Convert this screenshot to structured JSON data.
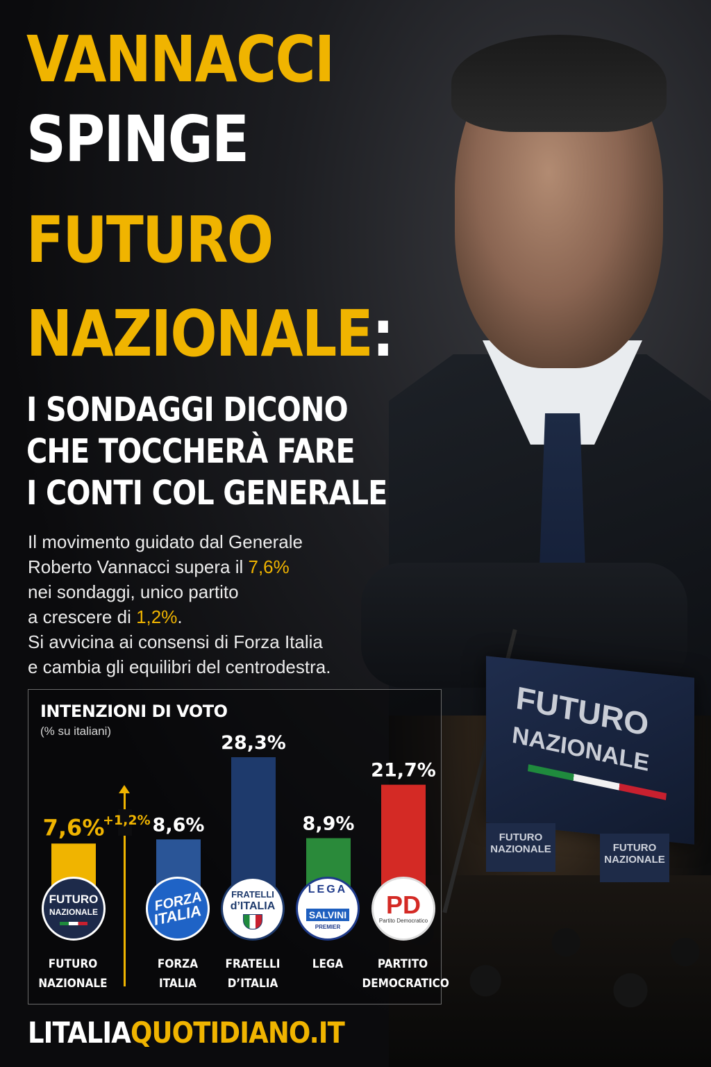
{
  "headline": {
    "line1": "VANNACCI",
    "line2": "SPINGE",
    "line3": "FUTURO",
    "line4": "NAZIONALE",
    "colon": ":",
    "subtitle_lines": [
      "I SONDAGGI DICONO",
      "CHE TOCCHERÀ FARE",
      "I CONTI COL GENERALE"
    ]
  },
  "body": {
    "line1": "Il movimento guidato dal Generale",
    "line2_a": "Roberto Vannacci supera il ",
    "line2_hl": "7,6%",
    "line3": "nei sondaggi, unico partito",
    "line4_a": "a crescere di ",
    "line4_hl": "1,2%",
    "line4_b": ".",
    "line5": "Si avvicina ai consensi di Forza Italia",
    "line6": "e cambia gli equilibri del centrodestra."
  },
  "flags": {
    "big_line1": "FUTURO",
    "big_line2": "NAZIONALE",
    "small_text": "FUTURO NAZIONALE"
  },
  "chart_data": {
    "type": "bar",
    "title": "INTENZIONI DI VOTO",
    "subtitle": "(% su italiani)",
    "categories": [
      "FUTURO NAZIONALE",
      "FORZA ITALIA",
      "FRATELLI D’ITALIA",
      "LEGA",
      "PARTITO DEMOCRATICO"
    ],
    "values": [
      7.6,
      8.6,
      28.3,
      8.9,
      21.7
    ],
    "value_labels": [
      "7,6%",
      "8,6%",
      "28,3%",
      "8,9%",
      "21,7%"
    ],
    "label_lines": [
      [
        "FUTURO",
        "NAZIONALE"
      ],
      [
        "FORZA",
        "ITALIA"
      ],
      [
        "FRATELLI",
        "D’ITALIA"
      ],
      [
        "LEGA",
        ""
      ],
      [
        "PARTITO",
        "DEMOCRATICO"
      ]
    ],
    "colors": [
      "#f0b400",
      "#2a5597",
      "#1e3a6c",
      "#2a8a3a",
      "#d42a25"
    ],
    "growth_label": "+1,2%",
    "grid": false
  },
  "logos": {
    "fn": [
      "FUTURO",
      "NAZIONALE"
    ],
    "fi": [
      "FORZA",
      "ITALIA"
    ],
    "fdi": [
      "FRATELLI",
      "d’ITALIA"
    ],
    "lega": [
      "LEGA",
      "SALVINI",
      "PREMIER"
    ],
    "pd": [
      "PD",
      "Partito Democratico"
    ]
  },
  "footer": {
    "part1": "LITALIA",
    "part2": "QUOTIDIANO.IT"
  }
}
